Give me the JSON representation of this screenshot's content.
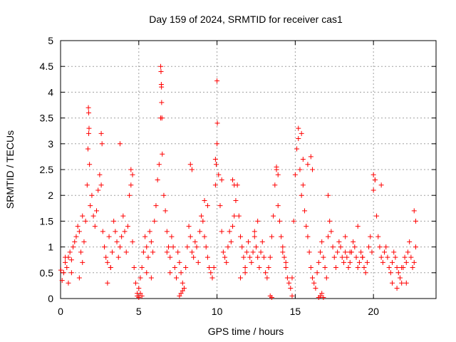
{
  "chart_data": {
    "type": "scatter",
    "title": "Day 159 of 2024, SRMTID for receiver cas1",
    "xlabel": "GPS time / hours",
    "ylabel": "SRMTID / TECUs",
    "xlim": [
      0,
      24
    ],
    "ylim": [
      0,
      5
    ],
    "xticks": [
      0,
      5,
      10,
      15,
      20
    ],
    "xtick_labels": [
      "0",
      "5",
      "10",
      "15",
      "20"
    ],
    "yticks": [
      0,
      0.5,
      1,
      1.5,
      2,
      2.5,
      3,
      3.5,
      4,
      4.5,
      5
    ],
    "ytick_labels": [
      "0",
      "0.5",
      "1",
      "1.5",
      "2",
      "2.5",
      "3",
      "3.5",
      "4",
      "4.5",
      "5"
    ],
    "grid": true,
    "marker": "+",
    "series": [
      {
        "name": "SRMTID",
        "color": "#ff0000",
        "x": [
          0.02,
          0.1,
          0.2,
          0.3,
          0.4,
          0.5,
          0.6,
          0.7,
          0.8,
          0.9,
          1.0,
          1.1,
          1.2,
          1.3,
          1.4,
          1.5,
          1.6,
          1.7,
          1.75,
          1.8,
          1.85,
          1.9,
          2.0,
          2.1,
          2.2,
          2.3,
          2.4,
          2.5,
          2.6,
          2.7,
          2.8,
          2.9,
          3.0,
          3.1,
          3.2,
          3.3,
          3.4,
          3.5,
          3.6,
          3.7,
          3.8,
          3.9,
          4.0,
          4.1,
          4.2,
          4.3,
          4.4,
          4.5,
          4.6,
          4.7,
          4.8,
          4.9,
          5.0,
          5.1,
          5.2,
          5.3,
          5.4,
          5.5,
          5.6,
          5.7,
          5.8,
          5.9,
          6.0,
          6.1,
          6.2,
          6.3,
          6.4,
          6.45,
          6.5,
          6.6,
          6.7,
          6.8,
          6.9,
          7.0,
          7.1,
          7.2,
          7.3,
          7.4,
          7.5,
          7.6,
          7.7,
          7.8,
          7.9,
          8.0,
          8.1,
          8.2,
          8.3,
          8.4,
          8.5,
          8.6,
          8.7,
          8.8,
          8.9,
          9.0,
          9.1,
          9.2,
          9.3,
          9.4,
          9.5,
          9.6,
          9.7,
          9.8,
          9.9,
          9.95,
          10.0,
          10.1,
          10.2,
          10.3,
          10.4,
          10.5,
          10.6,
          10.7,
          10.8,
          10.9,
          11.0,
          11.1,
          11.2,
          11.3,
          11.4,
          11.5,
          11.6,
          11.7,
          11.8,
          11.9,
          12.0,
          12.1,
          12.2,
          12.3,
          12.4,
          12.5,
          12.6,
          12.7,
          12.8,
          12.9,
          13.0,
          13.1,
          13.2,
          13.3,
          13.4,
          13.5,
          13.6,
          13.7,
          13.8,
          13.9,
          14.0,
          14.1,
          14.2,
          14.3,
          14.4,
          14.5,
          14.6,
          14.7,
          14.8,
          14.9,
          15.0,
          15.1,
          15.2,
          15.3,
          15.4,
          15.5,
          15.6,
          15.7,
          15.8,
          15.9,
          16.0,
          16.1,
          16.2,
          16.3,
          16.4,
          16.5,
          16.6,
          16.7,
          16.8,
          16.9,
          17.0,
          17.1,
          17.2,
          17.3,
          17.4,
          17.5,
          17.6,
          17.7,
          17.8,
          17.9,
          18.0,
          18.1,
          18.2,
          18.3,
          18.4,
          18.5,
          18.6,
          18.7,
          18.8,
          18.9,
          19.0,
          19.1,
          19.2,
          19.3,
          19.4,
          19.5,
          19.6,
          19.7,
          19.8,
          19.9,
          20.0,
          20.1,
          20.2,
          20.3,
          20.4,
          20.5,
          20.6,
          20.7,
          20.8,
          20.9,
          21.0,
          21.1,
          21.2,
          21.3,
          21.4,
          21.5,
          21.6,
          21.7,
          21.8,
          21.9,
          22.0,
          22.1,
          22.2,
          22.3,
          22.4,
          22.5,
          22.6,
          22.7,
          1.78,
          1.8,
          1.82,
          6.4,
          6.42,
          6.44,
          6.46,
          6.48,
          10.0,
          10.02,
          15.2,
          15.4,
          2.6,
          2.65,
          3.8,
          4.5,
          4.6,
          8.3,
          8.4,
          9.9,
          10.3,
          11.0,
          11.1,
          13.8,
          13.9,
          15.5,
          15.8,
          16.0,
          16.1,
          17.1,
          20.0,
          20.1,
          20.5,
          22.6,
          22.7,
          4.9,
          5.0,
          5.1,
          5.2,
          7.6,
          7.7,
          7.8,
          13.4,
          13.5,
          14.8,
          16.5,
          16.6,
          16.7,
          16.8,
          0.3,
          0.5,
          0.7,
          1.2,
          1.4,
          3.0,
          3.2,
          5.5,
          5.8,
          6.8,
          7.0,
          9.2,
          9.4,
          11.5,
          11.8,
          12.4,
          12.6,
          14.2,
          14.4,
          18.2,
          18.5,
          19.0,
          19.3,
          21.2,
          21.5,
          21.8,
          22.1
        ],
        "y": [
          0.55,
          0.35,
          0.5,
          0.7,
          0.6,
          0.8,
          0.9,
          0.75,
          1.0,
          1.1,
          1.2,
          1.4,
          1.3,
          0.9,
          1.6,
          1.1,
          1.5,
          2.2,
          2.9,
          3.2,
          2.6,
          1.8,
          2.0,
          1.6,
          1.4,
          1.7,
          2.1,
          2.4,
          2.2,
          1.3,
          1.0,
          0.8,
          0.7,
          1.2,
          0.6,
          0.9,
          1.5,
          1.3,
          1.1,
          0.8,
          1.0,
          1.2,
          1.6,
          1.3,
          0.9,
          1.4,
          2.0,
          2.2,
          1.1,
          0.6,
          0.3,
          0.1,
          0.2,
          0.4,
          0.6,
          0.9,
          1.2,
          1.0,
          0.8,
          1.3,
          1.1,
          0.9,
          1.5,
          1.8,
          2.3,
          2.6,
          3.5,
          4.1,
          2.8,
          2.0,
          1.7,
          1.3,
          1.0,
          0.8,
          1.2,
          1.0,
          0.6,
          0.4,
          0.9,
          0.7,
          0.5,
          0.3,
          0.2,
          0.6,
          1.0,
          1.4,
          1.2,
          0.9,
          0.8,
          1.1,
          1.0,
          0.7,
          1.3,
          1.6,
          1.5,
          1.2,
          1.0,
          0.8,
          0.6,
          0.5,
          0.4,
          0.6,
          2.2,
          2.6,
          3.0,
          2.4,
          1.8,
          1.3,
          0.9,
          0.8,
          0.7,
          1.0,
          1.3,
          1.1,
          1.4,
          1.6,
          1.9,
          2.2,
          1.6,
          1.2,
          1.0,
          0.8,
          0.6,
          0.9,
          1.1,
          0.8,
          0.7,
          0.9,
          1.2,
          1.0,
          0.8,
          0.6,
          0.9,
          1.1,
          0.8,
          0.5,
          0.4,
          0.6,
          0.8,
          1.2,
          1.6,
          2.2,
          2.5,
          1.8,
          1.5,
          1.2,
          1.0,
          0.8,
          0.6,
          0.4,
          0.3,
          0.2,
          0.4,
          1.5,
          2.4,
          2.9,
          3.1,
          2.5,
          2.0,
          2.2,
          1.7,
          1.4,
          1.2,
          0.9,
          0.6,
          0.4,
          0.3,
          0.2,
          0.5,
          0.7,
          0.9,
          1.1,
          0.8,
          0.6,
          0.4,
          1.2,
          1.5,
          1.3,
          1.0,
          0.8,
          0.6,
          0.9,
          1.1,
          1.0,
          0.8,
          0.7,
          0.9,
          0.8,
          0.6,
          0.7,
          0.9,
          1.1,
          1.0,
          0.8,
          0.6,
          0.7,
          0.9,
          0.8,
          0.6,
          0.5,
          0.7,
          1.0,
          1.2,
          0.9,
          2.1,
          2.3,
          1.6,
          1.2,
          1.0,
          0.8,
          0.7,
          0.9,
          1.0,
          0.8,
          0.6,
          0.5,
          0.7,
          0.9,
          0.8,
          0.6,
          0.5,
          0.4,
          0.3,
          0.6,
          0.8,
          0.7,
          0.9,
          1.1,
          0.8,
          0.6,
          0.7,
          1.0,
          3.7,
          3.6,
          3.3,
          4.5,
          4.4,
          4.15,
          3.8,
          3.5,
          4.22,
          3.4,
          3.3,
          3.2,
          3.2,
          3.0,
          3.0,
          2.5,
          2.4,
          2.6,
          2.5,
          2.7,
          2.3,
          2.3,
          2.2,
          2.55,
          2.4,
          2.7,
          2.6,
          2.75,
          2.5,
          2.0,
          2.4,
          2.3,
          2.2,
          1.7,
          1.5,
          0.05,
          0.02,
          0.1,
          0.05,
          0.05,
          0.1,
          0.15,
          0.05,
          0.02,
          0.05,
          0.02,
          0.05,
          0.1,
          0.02,
          0.8,
          0.3,
          0.5,
          0.4,
          0.7,
          0.3,
          0.6,
          0.5,
          0.4,
          0.9,
          0.5,
          1.9,
          1.8,
          0.4,
          0.5,
          1.3,
          1.5,
          0.9,
          0.7,
          1.2,
          0.9,
          1.4,
          0.8,
          0.3,
          0.2,
          0.6,
          0.3
        ]
      }
    ]
  }
}
